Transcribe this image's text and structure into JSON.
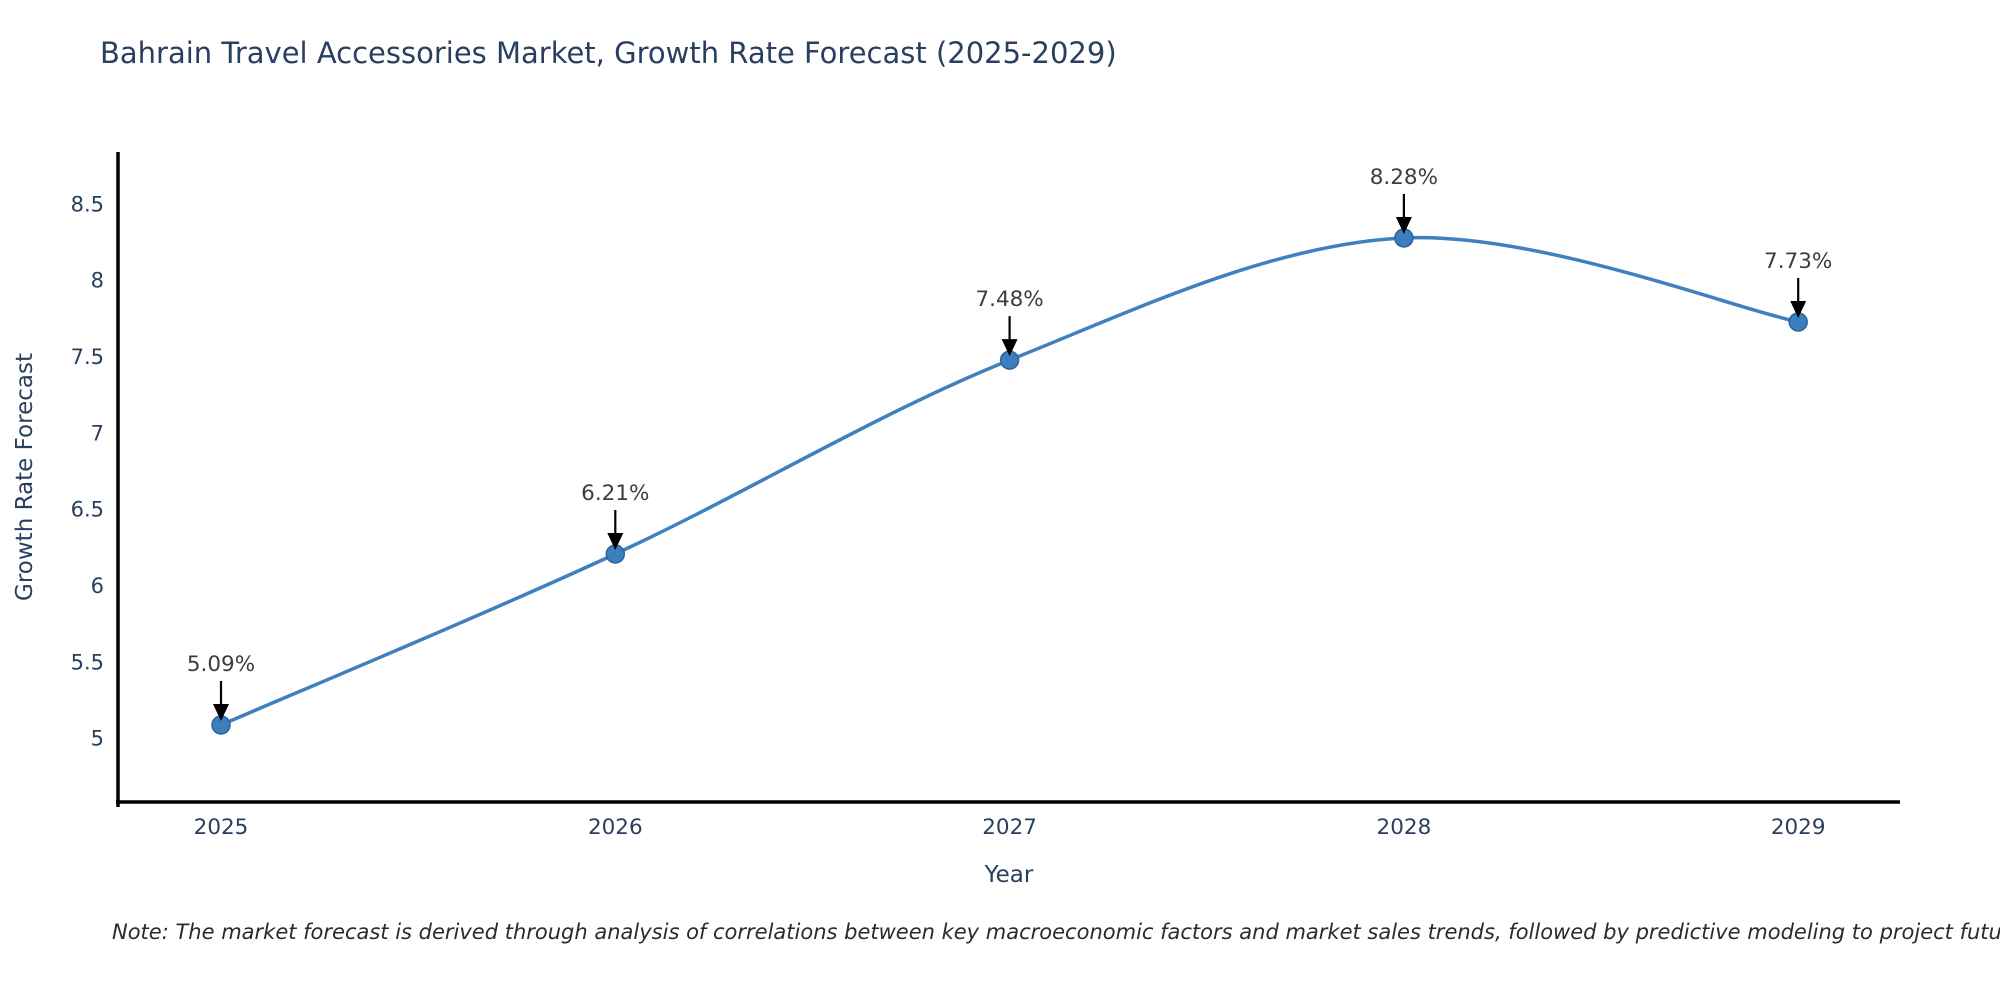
{
  "title": "Bahrain Travel Accessories Market, Growth Rate Forecast (2025-2029)",
  "note": "Note: The market forecast is derived through analysis of correlations between key macroeconomic factors and market sales trends, followed by predictive modeling to project future sales",
  "colors": {
    "title_text": "#2a3f5f",
    "axis_text": "#2a3f5f",
    "annotation_text": "#3d3d3d",
    "axis_line": "#000000",
    "series_line": "#3f80bf",
    "marker_fill": "#3d7ebd",
    "marker_edge": "#2e6399",
    "arrow": "#000000"
  },
  "chart_data": {
    "type": "line",
    "title": "Bahrain Travel Accessories Market, Growth Rate Forecast (2025-2029)",
    "xlabel": "Year",
    "ylabel": "Growth Rate Forecast",
    "x": [
      2025,
      2026,
      2027,
      2028,
      2029
    ],
    "values": [
      5.09,
      6.21,
      7.48,
      8.28,
      7.73
    ],
    "point_labels": [
      "5.09%",
      "6.21%",
      "7.48%",
      "8.28%",
      "7.73%"
    ],
    "xticks": [
      "2025",
      "2026",
      "2027",
      "2028",
      "2029"
    ],
    "yticks": [
      5,
      5.5,
      6,
      6.5,
      7,
      7.5,
      8,
      8.5
    ],
    "ylim": [
      4.6,
      8.79
    ],
    "line_shape": "spline",
    "grid": false,
    "legend": "none",
    "annotations_style": "value label with downward black arrow to each marker"
  }
}
